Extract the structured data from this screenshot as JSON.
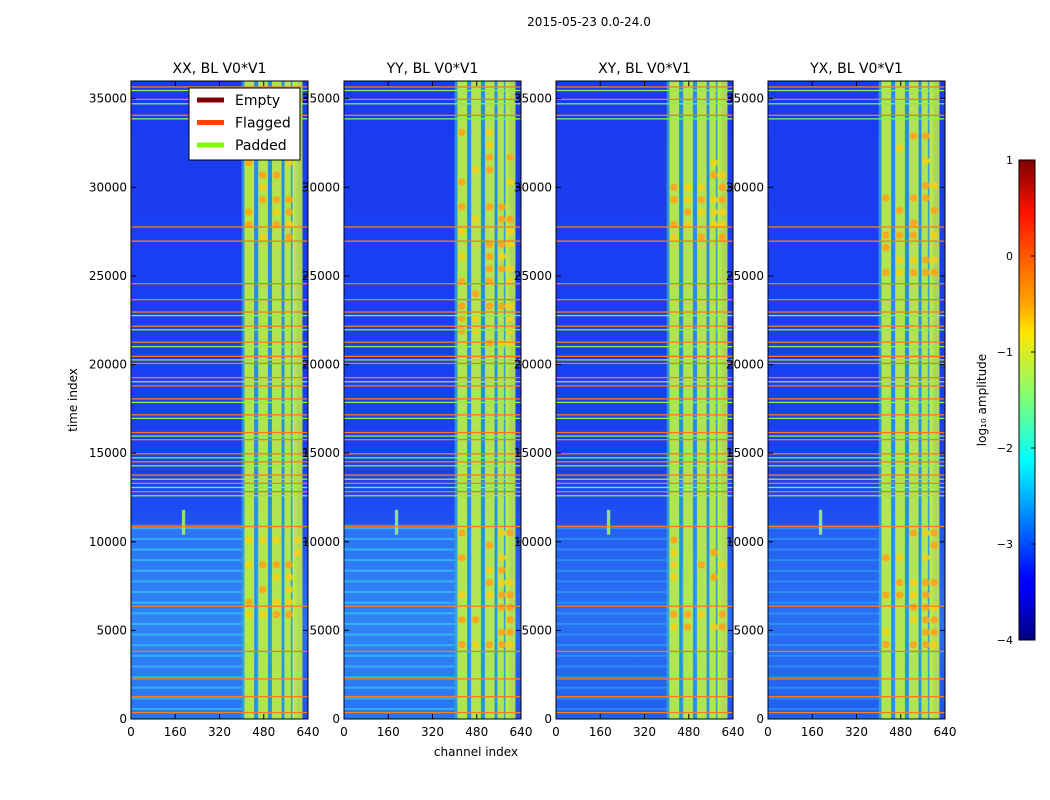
{
  "chart_data": {
    "type": "heatmap",
    "suptitle": "2015-05-23 0.0-24.0",
    "xlabel": "channel index",
    "ylabel": "time index",
    "xlim": [
      0,
      640
    ],
    "ylim": [
      0,
      36000
    ],
    "x_ticks": [
      0,
      160,
      320,
      480,
      640
    ],
    "y_ticks": [
      0,
      5000,
      10000,
      15000,
      20000,
      25000,
      30000,
      35000
    ],
    "panels": [
      {
        "title": "XX, BL V0*V1"
      },
      {
        "title": "YY, BL V0*V1"
      },
      {
        "title": "XY, BL V0*V1"
      },
      {
        "title": "YX, BL V0*V1"
      }
    ],
    "legend": {
      "location": "top-right of first panel",
      "entries": [
        {
          "label": "Empty",
          "color": "#800000"
        },
        {
          "label": "Flagged",
          "color": "#ff4500"
        },
        {
          "label": "Padded",
          "color": "#7cfc00"
        }
      ]
    },
    "colorbar": {
      "label": "log₁₀ amplitude",
      "min": -4,
      "max": 1,
      "ticks": [
        1,
        0,
        -1,
        -2,
        -3,
        -4
      ],
      "tick_labels": [
        "1",
        "0",
        "−1",
        "−2",
        "−3",
        "−4"
      ],
      "colormap": "jet"
    },
    "flagged_row_bands": [
      {
        "y0": 35300,
        "y1": 35700
      },
      {
        "y0": 34500,
        "y1": 35000
      },
      {
        "y0": 33700,
        "y1": 34100
      },
      {
        "y0": 27700,
        "y1": 27800
      },
      {
        "y0": 26900,
        "y1": 27000
      },
      {
        "y0": 24300,
        "y1": 24600
      },
      {
        "y0": 23400,
        "y1": 23700
      },
      {
        "y0": 22600,
        "y1": 23000
      },
      {
        "y0": 21800,
        "y1": 22200
      },
      {
        "y0": 20800,
        "y1": 21300
      },
      {
        "y0": 19900,
        "y1": 20500
      },
      {
        "y0": 18600,
        "y1": 19300
      },
      {
        "y0": 17700,
        "y1": 18100
      },
      {
        "y0": 16800,
        "y1": 17200
      },
      {
        "y0": 15600,
        "y1": 16200
      },
      {
        "y0": 14100,
        "y1": 15000
      },
      {
        "y0": 12400,
        "y1": 13800
      },
      {
        "y0": 10800,
        "y1": 10900
      },
      {
        "y0": 6200,
        "y1": 6400
      },
      {
        "y0": 3700,
        "y1": 3850
      },
      {
        "y0": 2200,
        "y1": 2300
      },
      {
        "y0": 1200,
        "y1": 1300
      },
      {
        "y0": 300,
        "y1": 400
      }
    ],
    "rfi_channel_range": [
      400,
      600
    ],
    "rfi_spike": {
      "channel": 190,
      "time_range": [
        10400,
        11800
      ]
    }
  }
}
